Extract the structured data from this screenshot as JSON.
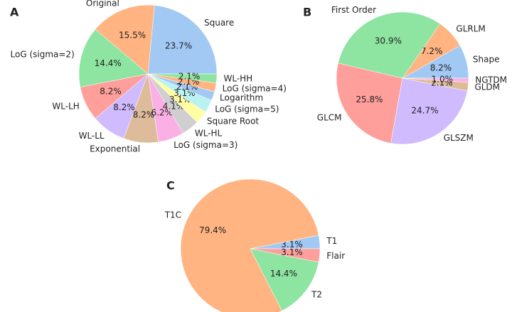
{
  "chart_data": [
    {
      "type": "pie",
      "title": "A",
      "categories": [
        "Square",
        "Original",
        "LoG (sigma=2)",
        "WL-LH",
        "WL-LL",
        "Exponential",
        "LoG (sigma=3)",
        "WL-HL",
        "Square Root",
        "LoG (sigma=5)",
        "Logarithm",
        "LoG (sigma=4)",
        "WL-HH"
      ],
      "values": [
        23.7,
        15.5,
        14.4,
        8.2,
        8.2,
        8.2,
        6.2,
        4.1,
        3.1,
        3.1,
        2.1,
        2.1,
        2.1
      ],
      "value_labels": [
        "23.7%",
        "15.5%",
        "14.4%",
        "8.2%",
        "8.2%",
        "8.2%",
        "6.2%",
        "4.1%",
        "3.1%",
        "3.1%",
        "2.1%",
        "2.1%",
        "2.1%"
      ],
      "colors": [
        "#a1c9f4",
        "#ffb482",
        "#8de5a1",
        "#ff9f9b",
        "#d0bbff",
        "#debb9b",
        "#fab0e4",
        "#cfcfcf",
        "#fffea3",
        "#b9f2f0",
        "#a1c9f4",
        "#ffb482",
        "#8de5a1"
      ]
    },
    {
      "type": "pie",
      "title": "B",
      "categories": [
        "Shape",
        "GLRLM",
        "First Order",
        "GLCM",
        "GLSZM",
        "GLDM",
        "NGTDM"
      ],
      "values": [
        8.2,
        7.2,
        30.9,
        25.8,
        24.7,
        2.1,
        1.0
      ],
      "value_labels": [
        "8.2%",
        "7.2%",
        "30.9%",
        "25.8%",
        "24.7%",
        "2.1%",
        "1.0%"
      ],
      "colors": [
        "#a1c9f4",
        "#ffb482",
        "#8de5a1",
        "#ff9f9b",
        "#d0bbff",
        "#debb9b",
        "#fab0e4"
      ]
    },
    {
      "type": "pie",
      "title": "C",
      "categories": [
        "T1",
        "T1C",
        "T2",
        "Flair"
      ],
      "values": [
        3.1,
        79.4,
        14.4,
        3.1
      ],
      "value_labels": [
        "3.1%",
        "79.4%",
        "14.4%",
        "3.1%"
      ],
      "colors": [
        "#a1c9f4",
        "#ffb482",
        "#8de5a1",
        "#ff9f9b"
      ]
    }
  ]
}
